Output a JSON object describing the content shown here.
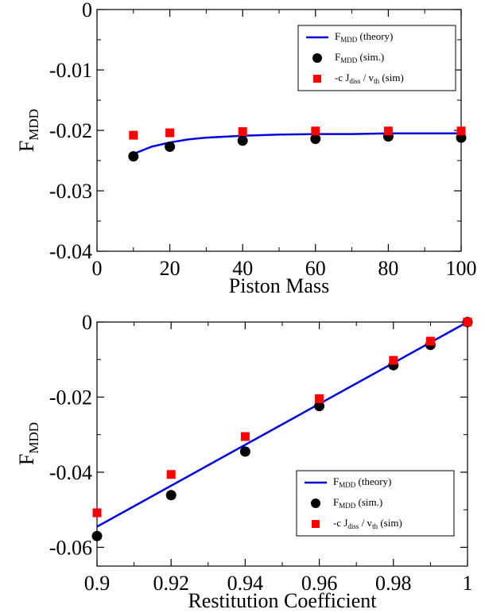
{
  "chart_data": [
    {
      "type": "scatter",
      "xlabel": "Piston Mass",
      "ylabel_main": "F",
      "ylabel_sub": "MDD",
      "xlim": [
        0,
        100
      ],
      "ylim": [
        -0.04,
        0
      ],
      "xticks": [
        0,
        20,
        40,
        60,
        80,
        100
      ],
      "xtick_labels": [
        "0",
        "20",
        "40",
        "60",
        "80",
        "100"
      ],
      "yticks": [
        -0.04,
        -0.03,
        -0.02,
        -0.01,
        0
      ],
      "ytick_labels": [
        "-0.04",
        "-0.03",
        "-0.02",
        "-0.01",
        "0"
      ],
      "legend_position": "top-right",
      "legend": [
        {
          "main": "F",
          "sub": "MDD",
          "rest": " (theory)"
        },
        {
          "main": "F",
          "sub": "MDD",
          "rest": " (sim.)"
        },
        {
          "main": "-c J",
          "sub": "diss",
          "rest": " / v",
          "sub2": "th",
          "rest2": " (sim)"
        }
      ],
      "series": [
        {
          "kind": "line",
          "color": "#0000dd",
          "x": [
            10,
            15,
            20,
            25,
            30,
            40,
            50,
            60,
            70,
            80,
            90,
            100
          ],
          "y": [
            -0.0239,
            -0.0227,
            -0.022,
            -0.0215,
            -0.0212,
            -0.0209,
            -0.0207,
            -0.0206,
            -0.0206,
            -0.0205,
            -0.0205,
            -0.0205
          ]
        },
        {
          "kind": "circle",
          "color": "#000000",
          "x": [
            10,
            20,
            40,
            60,
            80,
            100
          ],
          "y": [
            -0.0243,
            -0.0227,
            -0.0217,
            -0.0214,
            -0.021,
            -0.0212
          ]
        },
        {
          "kind": "square",
          "color": "#ff0000",
          "x": [
            10,
            20,
            40,
            60,
            80,
            100
          ],
          "y": [
            -0.0208,
            -0.0204,
            -0.0202,
            -0.0201,
            -0.0201,
            -0.0201
          ]
        }
      ]
    },
    {
      "type": "scatter",
      "xlabel": "Restitution Coefficient",
      "ylabel_main": "F",
      "ylabel_sub": "MDD",
      "xlim": [
        0.9,
        1
      ],
      "ylim": [
        -0.065,
        0
      ],
      "xticks": [
        0.9,
        0.92,
        0.94,
        0.96,
        0.98,
        1
      ],
      "xtick_labels": [
        "0.9",
        "0.92",
        "0.94",
        "0.96",
        "0.98",
        "1"
      ],
      "yticks": [
        -0.06,
        -0.04,
        -0.02,
        0
      ],
      "ytick_labels": [
        "-0.06",
        "-0.04",
        "-0.02",
        "0"
      ],
      "legend_position": "bottom-right",
      "legend": [
        {
          "main": "F",
          "sub": "MDD",
          "rest": " (theory)"
        },
        {
          "main": "F",
          "sub": "MDD",
          "rest": " (sim.)"
        },
        {
          "main": "-c J",
          "sub": "diss",
          "rest": " / v",
          "sub2": "th",
          "rest2": " (sim)"
        }
      ],
      "series": [
        {
          "kind": "line",
          "color": "#0000dd",
          "x": [
            0.9,
            1.0
          ],
          "y": [
            -0.0545,
            0.0
          ]
        },
        {
          "kind": "circle",
          "color": "#000000",
          "x": [
            0.9,
            0.92,
            0.94,
            0.96,
            0.98,
            0.99,
            1.0
          ],
          "y": [
            -0.057,
            -0.0461,
            -0.0345,
            -0.0224,
            -0.0115,
            -0.0061,
            0.0
          ]
        },
        {
          "kind": "square",
          "color": "#ff0000",
          "x": [
            0.9,
            0.92,
            0.94,
            0.96,
            0.98,
            0.99,
            1.0
          ],
          "y": [
            -0.0508,
            -0.0406,
            -0.0305,
            -0.0204,
            -0.0102,
            -0.0051,
            0.0
          ]
        }
      ]
    }
  ]
}
